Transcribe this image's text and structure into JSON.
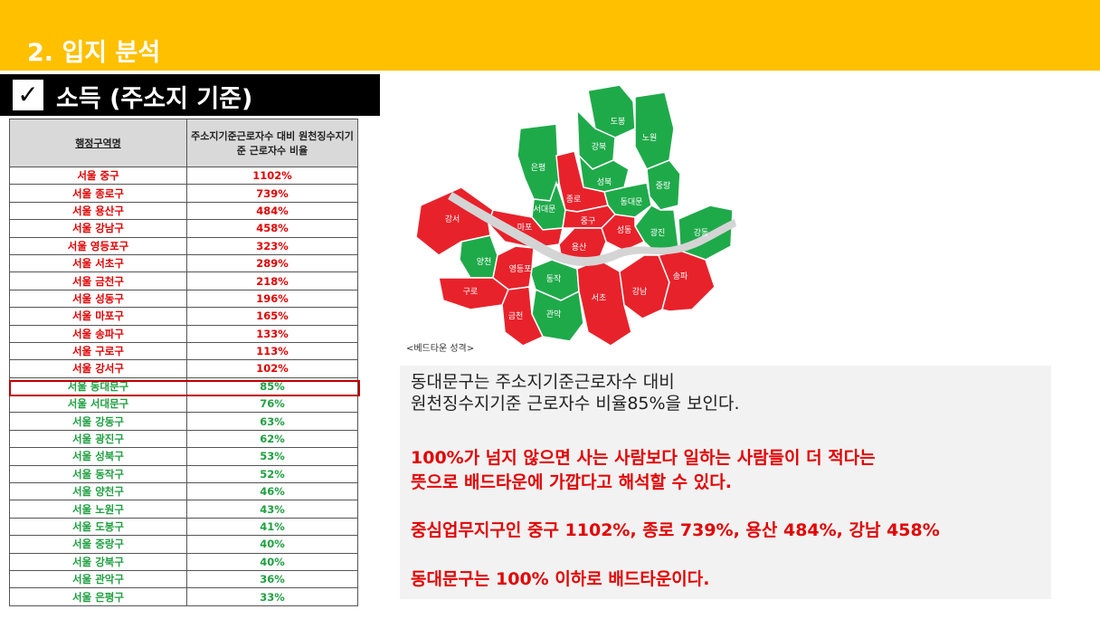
{
  "header": {
    "title": "2. 입지 분석"
  },
  "subtitle": {
    "check_icon": "check-icon",
    "text": "소득 (주소지 기준)"
  },
  "table": {
    "headers": [
      "행정구역명",
      "주소지기준근로자수 대비 원천징수지기준 근로자수 비율"
    ],
    "rows": [
      {
        "name": "서울 중구",
        "value": "1102%",
        "status": "red"
      },
      {
        "name": "서울 종로구",
        "value": "739%",
        "status": "red"
      },
      {
        "name": "서울 용산구",
        "value": "484%",
        "status": "red"
      },
      {
        "name": "서울 강남구",
        "value": "458%",
        "status": "red"
      },
      {
        "name": "서울 영등포구",
        "value": "323%",
        "status": "red"
      },
      {
        "name": "서울 서초구",
        "value": "289%",
        "status": "red"
      },
      {
        "name": "서울 금천구",
        "value": "218%",
        "status": "red"
      },
      {
        "name": "서울 성동구",
        "value": "196%",
        "status": "red"
      },
      {
        "name": "서울 마포구",
        "value": "165%",
        "status": "red"
      },
      {
        "name": "서울 송파구",
        "value": "133%",
        "status": "red"
      },
      {
        "name": "서울 구로구",
        "value": "113%",
        "status": "red"
      },
      {
        "name": "서울 강서구",
        "value": "102%",
        "status": "red"
      },
      {
        "name": "서울 동대문구",
        "value": "85%",
        "status": "green"
      },
      {
        "name": "서울 서대문구",
        "value": "76%",
        "status": "green"
      },
      {
        "name": "서울 강동구",
        "value": "63%",
        "status": "green"
      },
      {
        "name": "서울 광진구",
        "value": "62%",
        "status": "green"
      },
      {
        "name": "서울 성북구",
        "value": "53%",
        "status": "green"
      },
      {
        "name": "서울 동작구",
        "value": "52%",
        "status": "green"
      },
      {
        "name": "서울 양천구",
        "value": "46%",
        "status": "green"
      },
      {
        "name": "서울 노원구",
        "value": "43%",
        "status": "green"
      },
      {
        "name": "서울 도봉구",
        "value": "41%",
        "status": "green"
      },
      {
        "name": "서울 중랑구",
        "value": "40%",
        "status": "green"
      },
      {
        "name": "서울 강북구",
        "value": "40%",
        "status": "green"
      },
      {
        "name": "서울 관악구",
        "value": "36%",
        "status": "green"
      },
      {
        "name": "서울 은평구",
        "value": "33%",
        "status": "green"
      }
    ]
  },
  "map": {
    "caption": "<베드타운 성격>",
    "colors": {
      "red": "#E8222B",
      "green": "#1FAA4A",
      "river": "#D4D4D4"
    },
    "districts": {
      "dobong": "도봉",
      "nowon": "노원",
      "gangbuk": "강북",
      "eunpyeong": "은평",
      "seongbuk": "성북",
      "jungnang": "중랑",
      "jongno": "종로",
      "dongdaemun": "동대문",
      "seodaemun": "서대문",
      "gangseo": "강서",
      "mapo": "마포",
      "jung": "중구",
      "seongdong": "성동",
      "gwangjin": "광진",
      "gangdong": "강동",
      "yongsan": "용산",
      "yangcheon": "양천",
      "yeongdeungpo": "영등포",
      "guro": "구로",
      "dongjak": "동작",
      "songpa": "송파",
      "gangnam": "강남",
      "seocho": "서초",
      "geumcheon": "금천",
      "gwanak": "관악"
    }
  },
  "info": {
    "p1": "동대문구는 주소지기준근로자수 대비\n원천징수지기준 근로자수 비율85%을 보인다.",
    "r1": "100%가 넘지 않으면 사는 사람보다 일하는 사람들이 더 적다는\n뜻으로 배드타운에 가깝다고 해석할 수 있다.",
    "r2": "중심업무지구인 중구 1102%, 종로 739%, 용산 484%, 강남 458%",
    "r3": "동대문구는 100% 이하로 배드타운이다."
  }
}
